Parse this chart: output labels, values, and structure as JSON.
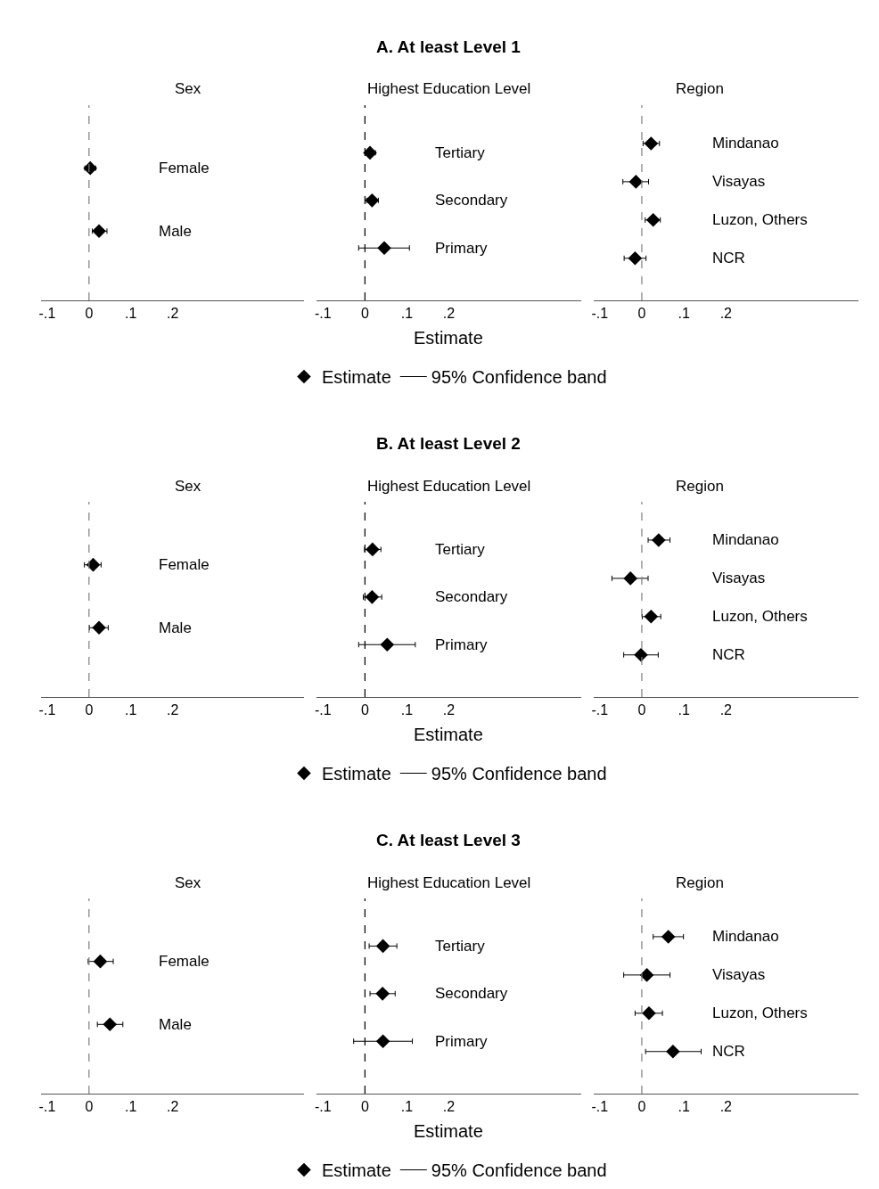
{
  "chart_data": [
    {
      "type": "scatter",
      "orientation": "horizontal",
      "title": "Sex",
      "categories": [
        "Female",
        "Male"
      ],
      "series": [
        {
          "color": "#000000",
          "values": [
            0.003,
            0.024
          ],
          "errors": [
            [
              -0.01,
              0.016
            ],
            [
              0.008,
              0.043
            ]
          ]
        }
      ],
      "xlim": [
        -0.115,
        0.515
      ],
      "xticks": [
        {
          "value": -0.1,
          "label": "-.1"
        },
        0,
        {
          "value": 0.1,
          "label": ".1"
        },
        {
          "value": 0.2,
          "label": ".2"
        }
      ],
      "ref_lines": [
        {
          "axis": "x",
          "value": 0,
          "line_style": "dashed",
          "color": "#7f7f7f"
        }
      ],
      "marker": "diamond",
      "tick_labels": "x"
    },
    {
      "type": "scatter",
      "orientation": "horizontal",
      "title": "A. At least Level 1",
      "subtitle": "Highest Education Level",
      "xlabel": "Estimate",
      "categories": [
        "Tertiary",
        "Secondary",
        "Primary"
      ],
      "series": [
        {
          "name": "Estimate",
          "color": "#000000",
          "values": [
            0.012,
            0.017,
            0.046
          ],
          "errors": [
            [
              0.001,
              0.025
            ],
            [
              0.004,
              0.032
            ],
            [
              -0.015,
              0.106
            ]
          ]
        }
      ],
      "xlim": [
        -0.115,
        0.515
      ],
      "xticks": [
        {
          "value": -0.1,
          "label": "-.1"
        },
        0,
        {
          "value": 0.1,
          "label": ".1"
        },
        {
          "value": 0.2,
          "label": ".2"
        }
      ],
      "ref_lines": [
        {
          "axis": "x",
          "value": 0,
          "line_style": "dashed",
          "color": "#000000"
        }
      ],
      "marker": "diamond",
      "tick_labels": "x",
      "legend": "bottom",
      "annotations": [
        "95% Confidence band"
      ]
    },
    {
      "type": "scatter",
      "orientation": "horizontal",
      "title": "Region",
      "categories": [
        "Mindanao",
        "Visayas",
        "Luzon, Others",
        "NCR"
      ],
      "series": [
        {
          "color": "#000000",
          "values": [
            0.022,
            -0.014,
            0.027,
            -0.016
          ],
          "errors": [
            [
              0.003,
              0.042
            ],
            [
              -0.045,
              0.016
            ],
            [
              0.008,
              0.044
            ],
            [
              -0.042,
              0.01
            ]
          ]
        }
      ],
      "xlim": [
        -0.115,
        0.515
      ],
      "xticks": [
        {
          "value": -0.1,
          "label": "-.1"
        },
        0,
        {
          "value": 0.1,
          "label": ".1"
        },
        {
          "value": 0.2,
          "label": ".2"
        }
      ],
      "ref_lines": [
        {
          "axis": "x",
          "value": 0,
          "line_style": "dashed",
          "color": "#7f7f7f"
        }
      ],
      "marker": "diamond",
      "tick_labels": "x"
    },
    {
      "type": "scatter",
      "orientation": "horizontal",
      "title": "Sex",
      "categories": [
        "Female",
        "Male"
      ],
      "series": [
        {
          "color": "#000000",
          "values": [
            0.01,
            0.024
          ],
          "errors": [
            [
              -0.011,
              0.029
            ],
            [
              0.001,
              0.046
            ]
          ]
        }
      ],
      "xlim": [
        -0.115,
        0.515
      ],
      "xticks": [
        {
          "value": -0.1,
          "label": "-.1"
        },
        0,
        {
          "value": 0.1,
          "label": ".1"
        },
        {
          "value": 0.2,
          "label": ".2"
        }
      ],
      "ref_lines": [
        {
          "axis": "x",
          "value": 0,
          "line_style": "dashed",
          "color": "#7f7f7f"
        }
      ],
      "marker": "diamond",
      "tick_labels": "x"
    },
    {
      "type": "scatter",
      "orientation": "horizontal",
      "title": "B. At least Level 2",
      "subtitle": "Highest Education Level",
      "xlabel": "Estimate",
      "categories": [
        "Tertiary",
        "Secondary",
        "Primary"
      ],
      "series": [
        {
          "name": "Estimate",
          "color": "#000000",
          "values": [
            0.018,
            0.017,
            0.053
          ],
          "errors": [
            [
              -0.001,
              0.038
            ],
            [
              -0.004,
              0.04
            ],
            [
              -0.015,
              0.12
            ]
          ]
        }
      ],
      "xlim": [
        -0.115,
        0.515
      ],
      "xticks": [
        {
          "value": -0.1,
          "label": "-.1"
        },
        0,
        {
          "value": 0.1,
          "label": ".1"
        },
        {
          "value": 0.2,
          "label": ".2"
        }
      ],
      "ref_lines": [
        {
          "axis": "x",
          "value": 0,
          "line_style": "dashed",
          "color": "#000000"
        }
      ],
      "marker": "diamond",
      "tick_labels": "x",
      "legend": "bottom",
      "annotations": [
        "95% Confidence band"
      ]
    },
    {
      "type": "scatter",
      "orientation": "horizontal",
      "title": "Region",
      "categories": [
        "Mindanao",
        "Visayas",
        "Luzon, Others",
        "NCR"
      ],
      "series": [
        {
          "color": "#000000",
          "values": [
            0.04,
            -0.027,
            0.022,
            -0.002
          ],
          "errors": [
            [
              0.015,
              0.067
            ],
            [
              -0.071,
              0.015
            ],
            [
              0.001,
              0.045
            ],
            [
              -0.043,
              0.039
            ]
          ]
        }
      ],
      "xlim": [
        -0.115,
        0.515
      ],
      "xticks": [
        {
          "value": -0.1,
          "label": "-.1"
        },
        0,
        {
          "value": 0.1,
          "label": ".1"
        },
        {
          "value": 0.2,
          "label": ".2"
        }
      ],
      "ref_lines": [
        {
          "axis": "x",
          "value": 0,
          "line_style": "dashed",
          "color": "#7f7f7f"
        }
      ],
      "marker": "diamond",
      "tick_labels": "x"
    },
    {
      "type": "scatter",
      "orientation": "horizontal",
      "title": "Sex",
      "categories": [
        "Female",
        "Male"
      ],
      "series": [
        {
          "color": "#000000",
          "values": [
            0.027,
            0.05
          ],
          "errors": [
            [
              -0.002,
              0.058
            ],
            [
              0.02,
              0.081
            ]
          ]
        }
      ],
      "xlim": [
        -0.115,
        0.515
      ],
      "xticks": [
        {
          "value": -0.1,
          "label": "-.1"
        },
        0,
        {
          "value": 0.1,
          "label": ".1"
        },
        {
          "value": 0.2,
          "label": ".2"
        }
      ],
      "ref_lines": [
        {
          "axis": "x",
          "value": 0,
          "line_style": "dashed",
          "color": "#7f7f7f"
        }
      ],
      "marker": "diamond",
      "tick_labels": "x"
    },
    {
      "type": "scatter",
      "orientation": "horizontal",
      "title": "C. At least Level 3",
      "subtitle": "Highest Education Level",
      "xlabel": "Estimate",
      "categories": [
        "Tertiary",
        "Secondary",
        "Primary"
      ],
      "series": [
        {
          "name": "Estimate",
          "color": "#000000",
          "values": [
            0.043,
            0.042,
            0.043
          ],
          "errors": [
            [
              0.01,
              0.076
            ],
            [
              0.012,
              0.072
            ],
            [
              -0.027,
              0.113
            ]
          ]
        }
      ],
      "xlim": [
        -0.115,
        0.515
      ],
      "xticks": [
        {
          "value": -0.1,
          "label": "-.1"
        },
        0,
        {
          "value": 0.1,
          "label": ".1"
        },
        {
          "value": 0.2,
          "label": ".2"
        }
      ],
      "ref_lines": [
        {
          "axis": "x",
          "value": 0,
          "line_style": "dashed",
          "color": "#000000"
        }
      ],
      "marker": "diamond",
      "tick_labels": "x",
      "legend": "bottom",
      "annotations": [
        "95% Confidence band"
      ]
    },
    {
      "type": "scatter",
      "orientation": "horizontal",
      "title": "Region",
      "categories": [
        "Mindanao",
        "Visayas",
        "Luzon, Others",
        "NCR"
      ],
      "series": [
        {
          "color": "#000000",
          "values": [
            0.063,
            0.012,
            0.017,
            0.074
          ],
          "errors": [
            [
              0.027,
              0.099
            ],
            [
              -0.043,
              0.067
            ],
            [
              -0.016,
              0.049
            ],
            [
              0.009,
              0.141
            ]
          ]
        }
      ],
      "xlim": [
        -0.115,
        0.515
      ],
      "xticks": [
        {
          "value": -0.1,
          "label": "-.1"
        },
        0,
        {
          "value": 0.1,
          "label": ".1"
        },
        {
          "value": 0.2,
          "label": ".2"
        }
      ],
      "ref_lines": [
        {
          "axis": "x",
          "value": 0,
          "line_style": "dashed",
          "color": "#7f7f7f"
        }
      ],
      "marker": "diamond",
      "tick_labels": "x"
    }
  ]
}
